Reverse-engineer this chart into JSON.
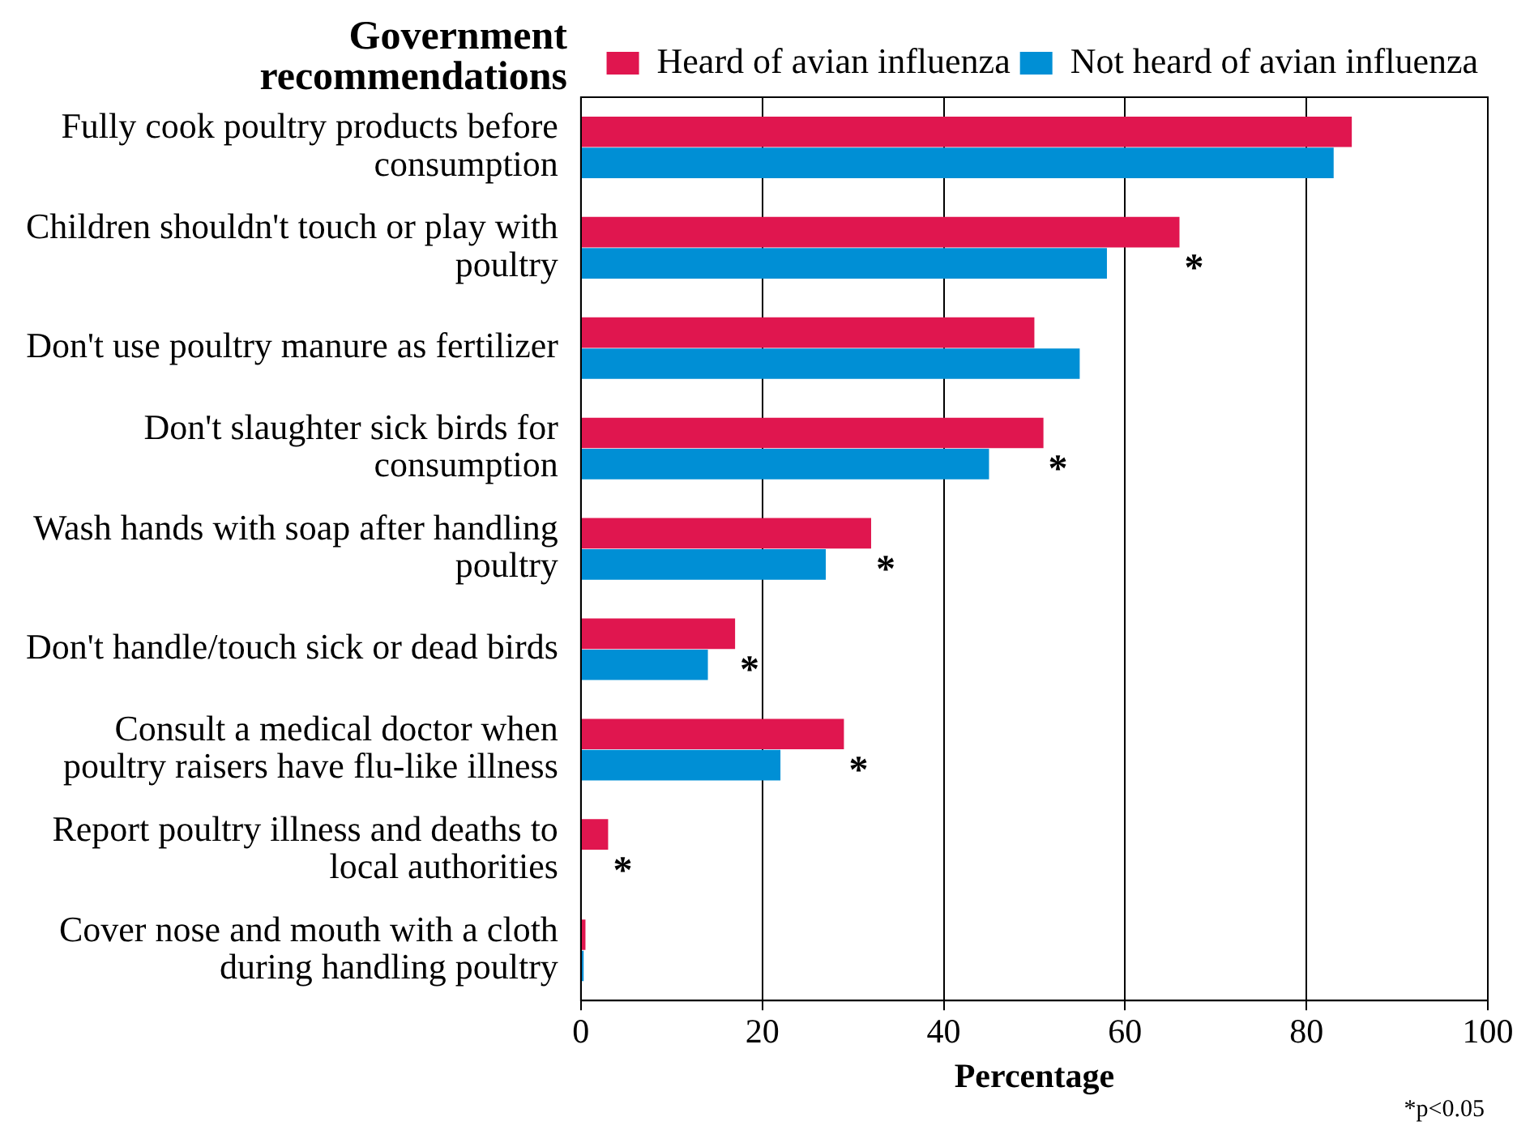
{
  "chart_data": {
    "type": "bar",
    "orientation": "horizontal",
    "title": "Government recommendations",
    "xlabel": "Percentage",
    "categories": [
      "Fully cook poultry products before consumption",
      "Children shouldn't touch or play with poultry",
      "Don't use poultry manure as fertilizer",
      "Don't slaughter sick birds for consumption",
      "Wash hands with soap after handling poultry",
      "Don't handle/touch sick or dead birds",
      "Consult a medical doctor when poultry raisers have flu-like illness",
      "Report poultry illness and deaths to local authorities",
      "Cover nose and mouth with a cloth during handling poultry"
    ],
    "series": [
      {
        "name": "Heard of avian influenza",
        "color": "#e0164f",
        "values": [
          85,
          66,
          50,
          51,
          32,
          17,
          29,
          3,
          0.5
        ]
      },
      {
        "name": "Not heard of avian influenza",
        "color": "#008fd5",
        "values": [
          83,
          58,
          55,
          45,
          27,
          14,
          22,
          0,
          0.3
        ]
      }
    ],
    "xlim": [
      0,
      100
    ],
    "xticks": [
      0,
      20,
      40,
      60,
      80,
      100
    ],
    "grid": "x",
    "legend": "top right",
    "annotations": [
      {
        "text": "*",
        "x": 66,
        "y": "Children shouldn't touch or play with poultry"
      },
      {
        "text": "*",
        "x": 51,
        "y": "Don't slaughter sick birds for consumption"
      },
      {
        "text": "*",
        "x": 32,
        "y": "Wash hands with soap after handling poultry"
      },
      {
        "text": "*",
        "x": 17,
        "y": "Don't handle/touch sick or dead birds"
      },
      {
        "text": "*",
        "x": 29,
        "y": "Consult a medical doctor when poultry raisers have flu-like illness"
      },
      {
        "text": "*",
        "x": 3,
        "y": "Report poultry illness and deaths to local authorities"
      },
      "*p<0.05"
    ]
  }
}
